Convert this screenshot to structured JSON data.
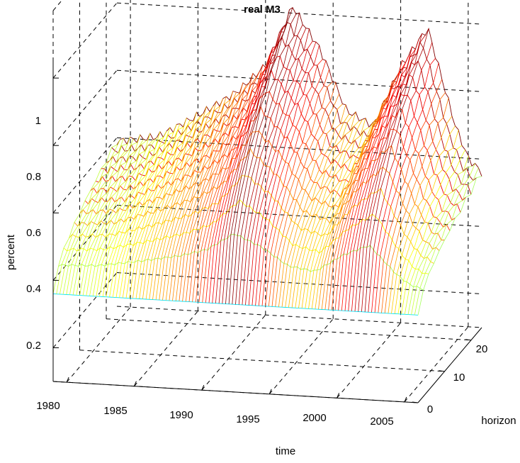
{
  "chart_data": {
    "type": "surface",
    "title": "real M3",
    "xlabel": "time",
    "ylabel": "horizon",
    "zlabel": "percent",
    "x_ticks": [
      "1980",
      "1985",
      "1990",
      "1995",
      "2000",
      "2005"
    ],
    "y_ticks": [
      "0",
      "10",
      "20"
    ],
    "z_ticks": [
      "0.2",
      "0.4",
      "0.6",
      "0.8",
      "1"
    ],
    "xlim": [
      1979,
      2006
    ],
    "ylim": [
      0,
      24
    ],
    "zlim": [
      0.1,
      1.2
    ],
    "grid": true,
    "colormap": "jet",
    "surface_profile": {
      "time": [
        1979,
        1982,
        1985,
        1988,
        1990,
        1992,
        1994,
        1996,
        1998,
        2000,
        2002,
        2004,
        2005,
        2006
      ],
      "value_at_horizon_0": [
        0.36,
        0.36,
        0.36,
        0.36,
        0.36,
        0.36,
        0.36,
        0.36,
        0.36,
        0.36,
        0.36,
        0.36,
        0.36,
        0.36
      ],
      "value_at_horizon_24": [
        0.59,
        0.61,
        0.68,
        0.76,
        0.84,
        1.02,
        0.9,
        0.72,
        0.68,
        0.86,
        0.98,
        0.7,
        0.6,
        0.56
      ]
    }
  }
}
